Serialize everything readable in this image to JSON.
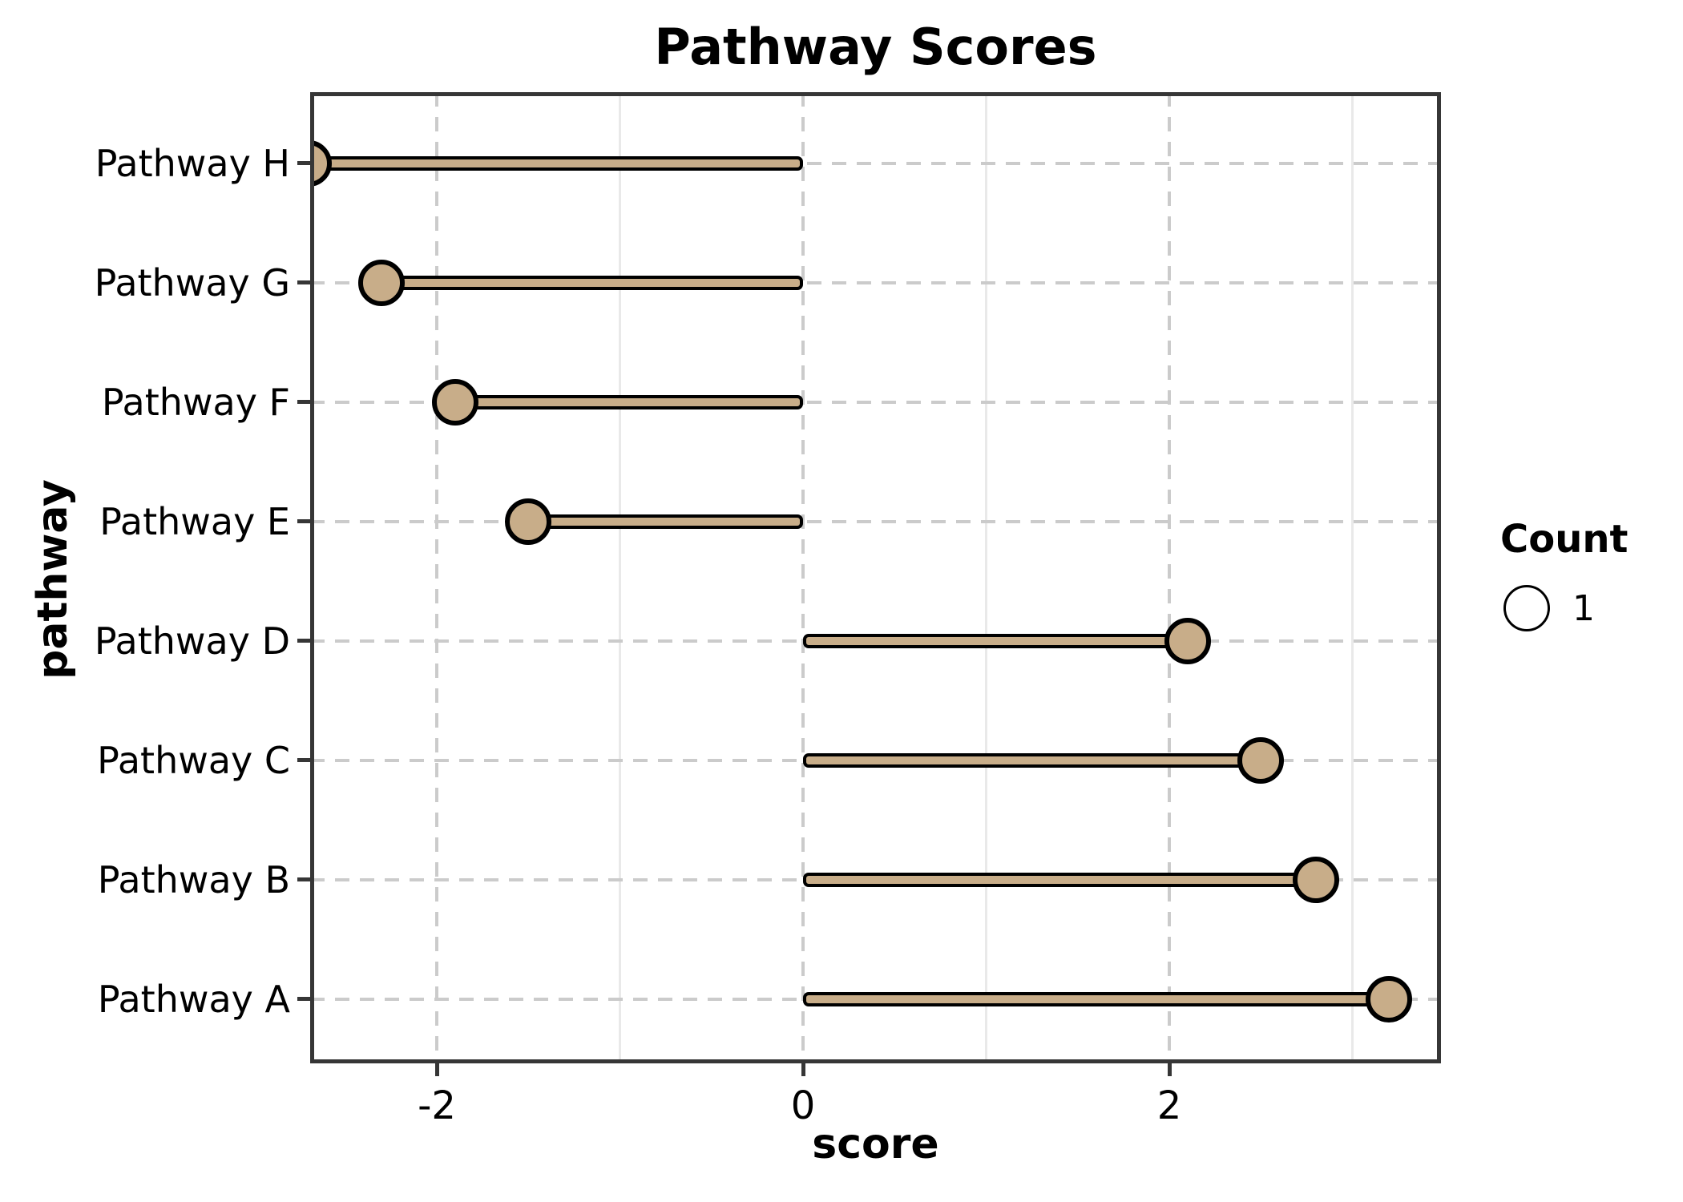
{
  "chart_data": {
    "type": "scatter",
    "style": "lollipop",
    "title": "Pathway Scores",
    "xlabel": "score",
    "ylabel": "pathway",
    "categories_top_to_bottom": [
      "Pathway H",
      "Pathway G",
      "Pathway F",
      "Pathway E",
      "Pathway D",
      "Pathway C",
      "Pathway B",
      "Pathway A"
    ],
    "values": [
      -2.7,
      -2.3,
      -1.9,
      -1.5,
      2.1,
      2.5,
      2.8,
      3.2
    ],
    "stem_baseline": 0,
    "x_major_ticks": [
      -2,
      0,
      2
    ],
    "x_minor_gridlines": [
      -1,
      1,
      3
    ],
    "xlim": [
      -2.69,
      3.48
    ],
    "grid": "major dashed + minor solid, light gray",
    "legend": {
      "title": "Count",
      "position": "right",
      "items": [
        {
          "label": "1",
          "marker": "open-circle"
        }
      ]
    },
    "colors": {
      "stem_fill": "#c8ad89",
      "marker_fill": "#c8ad89",
      "marker_stroke": "#000000",
      "axis_frame": "#363636",
      "major_grid": "#cbcbcb",
      "minor_grid": "#e9e9e9",
      "background": "#ffffff",
      "text": "#000000"
    }
  }
}
